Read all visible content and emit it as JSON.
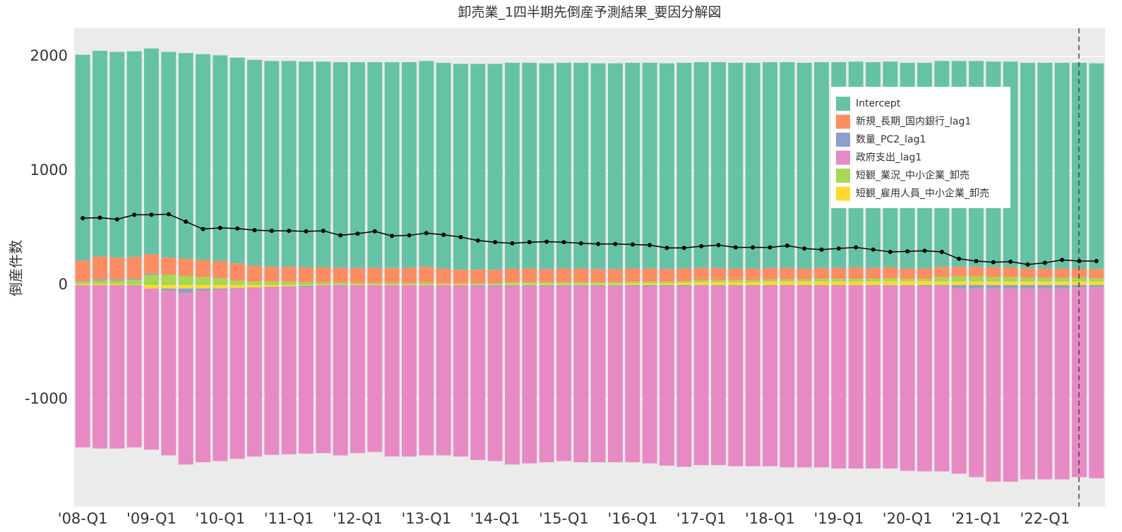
{
  "chart_data": {
    "type": "bar",
    "title": "卸売業_1四半期先倒産予測結果_要因分解図",
    "y_label": "倒産件数",
    "categories": [
      "'08-Q1",
      null,
      null,
      null,
      "'09-Q1",
      null,
      null,
      null,
      "'10-Q1",
      null,
      null,
      null,
      "'11-Q1",
      null,
      null,
      null,
      "'12-Q1",
      null,
      null,
      null,
      "'13-Q1",
      null,
      null,
      null,
      "'14-Q1",
      null,
      null,
      null,
      "'15-Q1",
      null,
      null,
      null,
      "'16-Q1",
      null,
      null,
      null,
      "'17-Q1",
      null,
      null,
      null,
      "'18-Q1",
      null,
      null,
      null,
      "'19-Q1",
      null,
      null,
      null,
      "'20-Q1",
      null,
      null,
      null,
      "'21-Q1",
      null,
      null,
      null,
      "'22-Q1",
      null,
      null,
      null
    ],
    "ylim": [
      -1938,
      2247
    ],
    "yticks": [
      -1000,
      0,
      1000,
      2000
    ],
    "grid": true,
    "legend": "upper right",
    "series": [
      {
        "name": "Intercept",
        "color": "#66c2a5",
        "values": [
          1800,
          1800,
          1800,
          1800,
          1800,
          1800,
          1800,
          1800,
          1800,
          1800,
          1800,
          1800,
          1800,
          1800,
          1800,
          1800,
          1800,
          1800,
          1800,
          1800,
          1800,
          1800,
          1800,
          1800,
          1800,
          1800,
          1800,
          1800,
          1800,
          1800,
          1800,
          1800,
          1800,
          1800,
          1800,
          1800,
          1800,
          1800,
          1800,
          1800,
          1800,
          1800,
          1800,
          1800,
          1800,
          1800,
          1800,
          1800,
          1800,
          1800,
          1800,
          1800,
          1800,
          1800,
          1800,
          1800,
          1800,
          1800,
          1800,
          1800
        ]
      },
      {
        "name": "新規_長期_国内銀行_lag1",
        "color": "#fc8d62",
        "values": [
          180,
          200,
          190,
          190,
          170,
          150,
          150,
          150,
          150,
          150,
          140,
          130,
          130,
          130,
          130,
          130,
          130,
          130,
          130,
          130,
          135,
          130,
          120,
          120,
          120,
          120,
          120,
          115,
          120,
          120,
          115,
          115,
          115,
          115,
          110,
          110,
          105,
          105,
          100,
          100,
          100,
          100,
          95,
          95,
          95,
          100,
          95,
          95,
          90,
          90,
          90,
          85,
          85,
          85,
          85,
          80,
          80,
          80,
          80,
          80
        ]
      },
      {
        "name": "数量_PC2_lag1",
        "color": "#8da0cb",
        "values": [
          5,
          10,
          10,
          10,
          10,
          -20,
          -40,
          -20,
          -10,
          -5,
          0,
          0,
          0,
          -10,
          0,
          -10,
          0,
          0,
          0,
          0,
          0,
          0,
          0,
          -10,
          -10,
          -10,
          -10,
          -10,
          -10,
          -10,
          -10,
          -10,
          -10,
          -10,
          -10,
          -10,
          -5,
          -5,
          -5,
          -5,
          -5,
          -5,
          -5,
          -5,
          -5,
          -5,
          -5,
          -5,
          -5,
          -10,
          -10,
          -30,
          -30,
          -30,
          -30,
          -30,
          -30,
          -30,
          -20,
          -20
        ]
      },
      {
        "name": "政府支出_lag1",
        "color": "#e78ac3",
        "values": [
          -1420,
          -1430,
          -1430,
          -1420,
          -1410,
          -1440,
          -1500,
          -1500,
          -1500,
          -1490,
          -1480,
          -1470,
          -1470,
          -1460,
          -1470,
          -1480,
          -1470,
          -1460,
          -1500,
          -1500,
          -1490,
          -1490,
          -1500,
          -1520,
          -1530,
          -1560,
          -1550,
          -1540,
          -1530,
          -1540,
          -1540,
          -1540,
          -1540,
          -1550,
          -1570,
          -1580,
          -1570,
          -1570,
          -1580,
          -1580,
          -1580,
          -1590,
          -1590,
          -1590,
          -1600,
          -1600,
          -1600,
          -1600,
          -1620,
          -1620,
          -1620,
          -1620,
          -1650,
          -1690,
          -1690,
          -1670,
          -1670,
          -1670,
          -1660,
          -1670
        ]
      },
      {
        "name": "短観_業況_中小企業_卸売",
        "color": "#a6d854",
        "values": [
          20,
          30,
          30,
          40,
          90,
          90,
          80,
          70,
          60,
          40,
          30,
          30,
          30,
          25,
          20,
          15,
          15,
          15,
          15,
          15,
          20,
          10,
          10,
          10,
          10,
          15,
          15,
          15,
          15,
          15,
          15,
          15,
          15,
          15,
          15,
          15,
          20,
          20,
          20,
          20,
          20,
          20,
          20,
          25,
          25,
          25,
          25,
          25,
          20,
          20,
          40,
          45,
          45,
          40,
          40,
          35,
          35,
          35,
          35,
          30
        ]
      },
      {
        "name": "短観_雇用人員_中小企業_卸売",
        "color": "#ffd92f",
        "values": [
          10,
          10,
          10,
          5,
          -30,
          -30,
          -30,
          -30,
          -30,
          -25,
          -20,
          -15,
          -10,
          -5,
          5,
          5,
          5,
          5,
          5,
          5,
          5,
          5,
          5,
          5,
          5,
          10,
          10,
          10,
          10,
          10,
          10,
          10,
          15,
          15,
          15,
          20,
          25,
          25,
          25,
          25,
          30,
          30,
          30,
          30,
          30,
          30,
          30,
          35,
          35,
          35,
          30,
          30,
          30,
          30,
          30,
          30,
          30,
          30,
          30,
          30
        ]
      }
    ],
    "line": {
      "color": "#000000",
      "values": [
        585,
        590,
        575,
        615,
        615,
        620,
        555,
        490,
        500,
        495,
        480,
        475,
        475,
        470,
        475,
        435,
        450,
        470,
        430,
        435,
        455,
        440,
        420,
        390,
        375,
        365,
        375,
        380,
        375,
        365,
        360,
        360,
        355,
        350,
        325,
        325,
        340,
        350,
        330,
        330,
        330,
        345,
        320,
        310,
        320,
        330,
        310,
        290,
        295,
        300,
        290,
        230,
        210,
        200,
        205,
        180,
        195,
        220,
        210,
        210
      ]
    }
  }
}
